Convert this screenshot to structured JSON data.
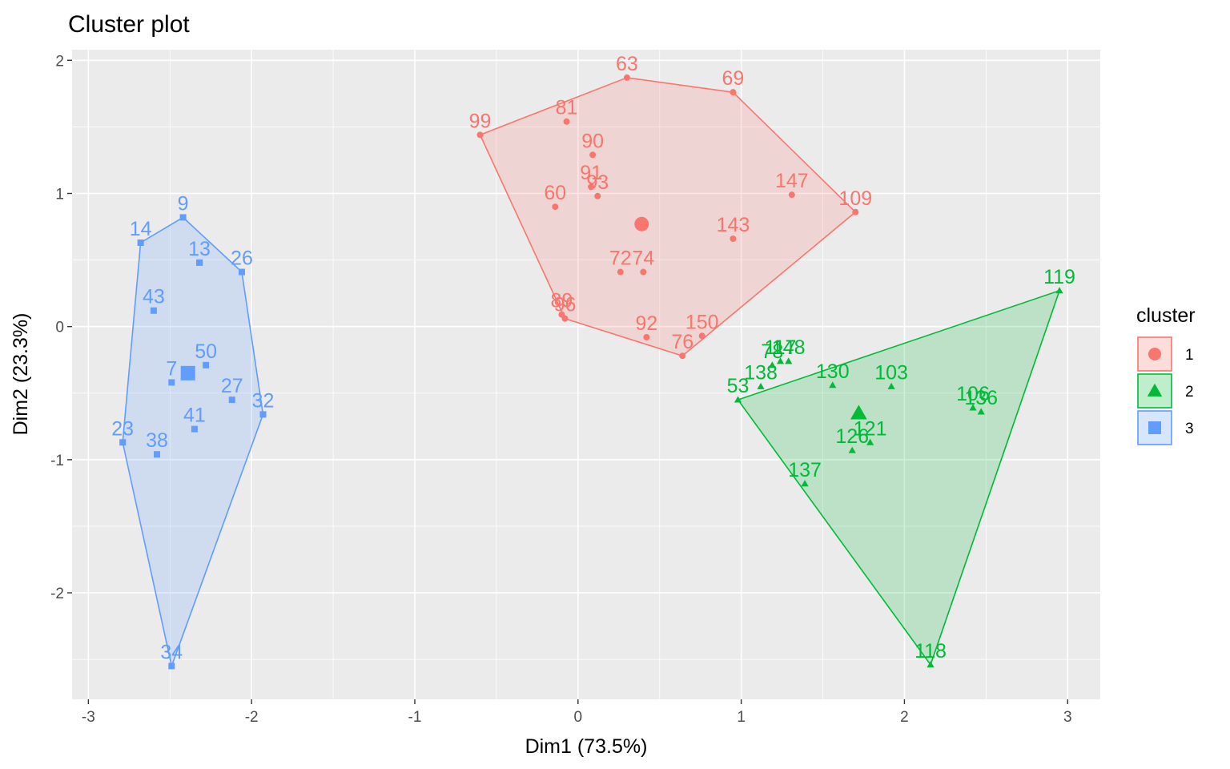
{
  "chart_data": {
    "type": "scatter",
    "title": "Cluster plot",
    "xlabel": "Dim1 (73.5%)",
    "ylabel": "Dim2 (23.3%)",
    "xlim": [
      -3.1,
      3.2
    ],
    "ylim": [
      -2.8,
      2.08
    ],
    "x_ticks": [
      -3,
      -2,
      -1,
      0,
      1,
      2,
      3
    ],
    "x_tick_labels": [
      "-3",
      "-2",
      "-1",
      "0",
      "1",
      "2",
      "3"
    ],
    "y_ticks": [
      -2,
      -1,
      0,
      1,
      2
    ],
    "y_tick_labels": [
      "-2",
      "-1",
      "0",
      "1",
      "2"
    ],
    "grid": true,
    "legend_position": "right",
    "legend_title": "cluster",
    "series": [
      {
        "name": "1",
        "color": "#F8766D",
        "marker": "circle",
        "center": [
          0.39,
          0.77
        ],
        "hull": [
          "99",
          "63",
          "69",
          "109",
          "76",
          "96"
        ],
        "points": [
          {
            "label": "63",
            "x": 0.3,
            "y": 1.87
          },
          {
            "label": "69",
            "x": 0.95,
            "y": 1.76
          },
          {
            "label": "99",
            "x": -0.6,
            "y": 1.44
          },
          {
            "label": "81",
            "x": -0.07,
            "y": 1.54
          },
          {
            "label": "90",
            "x": 0.09,
            "y": 1.29
          },
          {
            "label": "91",
            "x": 0.08,
            "y": 1.05
          },
          {
            "label": "93",
            "x": 0.12,
            "y": 0.98
          },
          {
            "label": "147",
            "x": 1.31,
            "y": 0.99
          },
          {
            "label": "109",
            "x": 1.7,
            "y": 0.86
          },
          {
            "label": "60",
            "x": -0.14,
            "y": 0.9
          },
          {
            "label": "143",
            "x": 0.95,
            "y": 0.66
          },
          {
            "label": "72",
            "x": 0.26,
            "y": 0.41
          },
          {
            "label": "74",
            "x": 0.4,
            "y": 0.41
          },
          {
            "label": "89",
            "x": -0.1,
            "y": 0.09
          },
          {
            "label": "96",
            "x": -0.08,
            "y": 0.06
          },
          {
            "label": "92",
            "x": 0.42,
            "y": -0.08
          },
          {
            "label": "150",
            "x": 0.76,
            "y": -0.07
          },
          {
            "label": "76",
            "x": 0.64,
            "y": -0.22
          }
        ]
      },
      {
        "name": "2",
        "color": "#00BA38",
        "marker": "triangle",
        "center": [
          1.72,
          -0.65
        ],
        "hull": [
          "53",
          "119",
          "118"
        ],
        "points": [
          {
            "label": "119",
            "x": 2.95,
            "y": 0.27
          },
          {
            "label": "78",
            "x": 1.19,
            "y": -0.29
          },
          {
            "label": "117",
            "x": 1.24,
            "y": -0.26
          },
          {
            "label": "148",
            "x": 1.29,
            "y": -0.26
          },
          {
            "label": "138",
            "x": 1.12,
            "y": -0.45
          },
          {
            "label": "130",
            "x": 1.56,
            "y": -0.44
          },
          {
            "label": "103",
            "x": 1.92,
            "y": -0.45
          },
          {
            "label": "53",
            "x": 0.98,
            "y": -0.55
          },
          {
            "label": "106",
            "x": 2.42,
            "y": -0.61
          },
          {
            "label": "136",
            "x": 2.47,
            "y": -0.64
          },
          {
            "label": "126",
            "x": 1.68,
            "y": -0.93
          },
          {
            "label": "121",
            "x": 1.79,
            "y": -0.87
          },
          {
            "label": "137",
            "x": 1.39,
            "y": -1.18
          },
          {
            "label": "118",
            "x": 2.16,
            "y": -2.54
          }
        ]
      },
      {
        "name": "3",
        "color": "#619CFF",
        "marker": "square",
        "center": [
          -2.39,
          -0.35
        ],
        "hull": [
          "9",
          "26",
          "32",
          "34",
          "23",
          "14"
        ],
        "points": [
          {
            "label": "9",
            "x": -2.42,
            "y": 0.82
          },
          {
            "label": "14",
            "x": -2.68,
            "y": 0.63
          },
          {
            "label": "13",
            "x": -2.32,
            "y": 0.48
          },
          {
            "label": "26",
            "x": -2.06,
            "y": 0.41
          },
          {
            "label": "43",
            "x": -2.6,
            "y": 0.12
          },
          {
            "label": "50",
            "x": -2.28,
            "y": -0.29
          },
          {
            "label": "7",
            "x": -2.49,
            "y": -0.42
          },
          {
            "label": "27",
            "x": -2.12,
            "y": -0.55
          },
          {
            "label": "32",
            "x": -1.93,
            "y": -0.66
          },
          {
            "label": "41",
            "x": -2.35,
            "y": -0.77
          },
          {
            "label": "23",
            "x": -2.79,
            "y": -0.87
          },
          {
            "label": "38",
            "x": -2.58,
            "y": -0.96
          },
          {
            "label": "34",
            "x": -2.49,
            "y": -2.55
          }
        ]
      }
    ]
  }
}
